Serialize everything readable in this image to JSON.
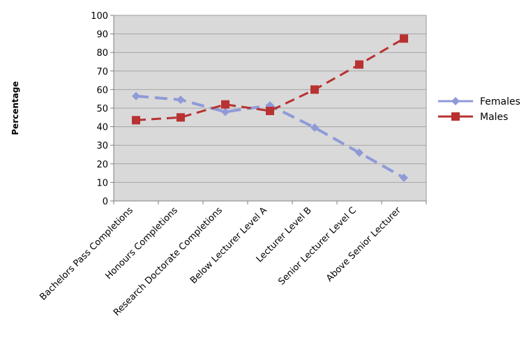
{
  "chart_data": {
    "type": "line",
    "ylabel": "Percentage",
    "xlabel": "",
    "ylim": [
      0,
      100
    ],
    "yticks": [
      0,
      10,
      20,
      30,
      40,
      50,
      60,
      70,
      80,
      90,
      100
    ],
    "grid": true,
    "legend_position": "right",
    "plot_background": "#d9d9d9",
    "categories": [
      "Bachelors Pass Completions",
      "Honours Completions",
      "Research Doctorate Completions",
      "Below Lecturer Level A",
      "Lecturer Level B",
      "Senior Lecturer Level C",
      "Above Senior Lecturer"
    ],
    "series": [
      {
        "name": "Females",
        "color": "#8f9ad8",
        "marker": "diamond",
        "values": [
          56.5,
          54.5,
          48,
          51.5,
          39.5,
          26,
          12.5
        ]
      },
      {
        "name": "Males",
        "color": "#b83232",
        "marker": "square",
        "values": [
          43.5,
          45,
          52,
          48.5,
          60,
          73.5,
          87.5
        ]
      }
    ]
  }
}
